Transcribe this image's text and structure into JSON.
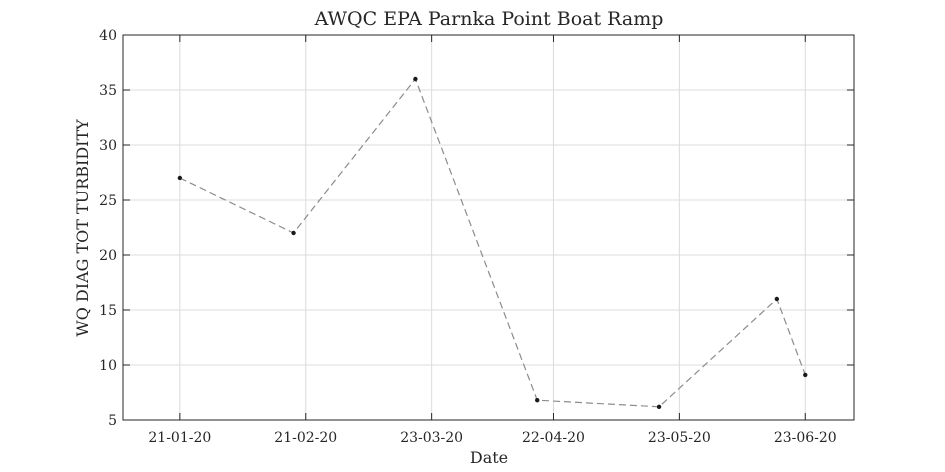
{
  "chart_data": {
    "type": "line",
    "title": "AWQC EPA Parnka Point Boat Ramp",
    "xlabel": "Date",
    "ylabel": "WQ DIAG TOT TURBIDITY",
    "xlim": [
      "2020-01-07",
      "2020-07-05"
    ],
    "ylim": [
      5,
      40
    ],
    "grid": true,
    "x_ticks": [
      {
        "date": "2020-01-21",
        "label": "21-01-20"
      },
      {
        "date": "2020-02-21",
        "label": "21-02-20"
      },
      {
        "date": "2020-03-23",
        "label": "23-03-20"
      },
      {
        "date": "2020-04-22",
        "label": "22-04-20"
      },
      {
        "date": "2020-05-23",
        "label": "23-05-20"
      },
      {
        "date": "2020-06-23",
        "label": "23-06-20"
      }
    ],
    "y_ticks": [
      5,
      10,
      15,
      20,
      25,
      30,
      35,
      40
    ],
    "series": [
      {
        "line_style": "dashed",
        "line_color": "#8c8c8c",
        "marker_color": "#1a1a1a",
        "points": [
          {
            "x": "2020-01-21",
            "y": 27.0
          },
          {
            "x": "2020-02-18",
            "y": 22.0
          },
          {
            "x": "2020-03-19",
            "y": 36.0
          },
          {
            "x": "2020-04-18",
            "y": 6.8
          },
          {
            "x": "2020-05-18",
            "y": 6.2
          },
          {
            "x": "2020-06-16",
            "y": 16.0
          },
          {
            "x": "2020-06-23",
            "y": 9.1
          }
        ]
      }
    ]
  }
}
